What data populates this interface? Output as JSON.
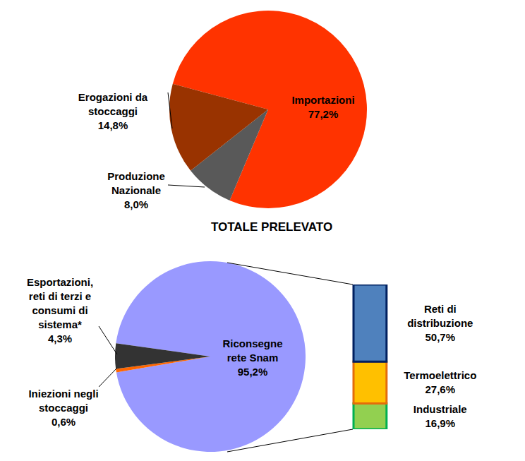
{
  "chart_data": [
    {
      "type": "pie",
      "categories": [
        "Importazioni",
        "Produzione Nazionale",
        "Erogazioni da stoccaggi"
      ],
      "values": [
        77.2,
        8.0,
        14.8
      ],
      "value_labels": [
        "77,2%",
        "8,0%",
        "14,8%"
      ],
      "colors": [
        "#FF3300",
        "#595959",
        "#993300"
      ],
      "data_labels": true
    },
    {
      "type": "pie",
      "title": "TOTALE PRELEVATO",
      "categories": [
        "Riconsegne rete Snam",
        "Iniezioni negli stoccaggi",
        "Esportazioni, reti di terzi e consumi di sistema*"
      ],
      "values": [
        95.2,
        0.6,
        4.3
      ],
      "value_labels": [
        "95,2%",
        "0,6%",
        "4,3%"
      ],
      "colors": [
        "#9999FF",
        "#FF6600",
        "#333333"
      ],
      "data_labels": true
    },
    {
      "type": "bar",
      "stacked": true,
      "data_labels": true,
      "tick_labels": false,
      "categories": [
        null
      ],
      "series": [
        {
          "name": "Reti di distribuzione",
          "color": "#4F81BD",
          "values": [
            50.7
          ],
          "value_labels": [
            "50,7%"
          ]
        },
        {
          "name": "Termoelettrico",
          "color": "#FFC000",
          "values": [
            27.6
          ],
          "value_labels": [
            "27,6%"
          ]
        },
        {
          "name": "Industriale",
          "color": "#92D050",
          "values": [
            16.9
          ],
          "value_labels": [
            "16,9%"
          ]
        }
      ]
    }
  ]
}
